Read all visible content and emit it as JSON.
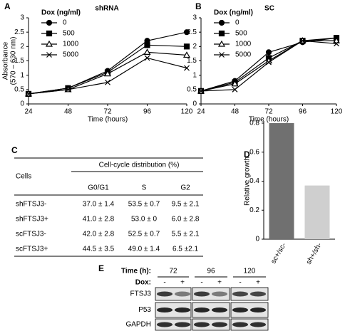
{
  "chart_data": [
    {
      "type": "line",
      "panel": "A",
      "title": "shRNA",
      "xlabel": "Time (hours)",
      "ylabel": [
        "Absorbance",
        "(570 – 630 nm)"
      ],
      "legend_title": "Dox (ng/ml)",
      "legend": "upper left",
      "x": [
        24,
        48,
        72,
        96,
        120
      ],
      "xlim": [
        24,
        120
      ],
      "xticks": [
        24,
        48,
        72,
        96,
        120
      ],
      "ylim": [
        0,
        3
      ],
      "yticks": [
        0,
        0.5,
        1,
        1.5,
        2,
        2.5,
        3
      ],
      "series": [
        {
          "name": "0",
          "color": "#000000",
          "marker": "circle",
          "values": [
            0.35,
            0.55,
            1.15,
            2.2,
            2.5
          ]
        },
        {
          "name": "500",
          "color": "#000000",
          "marker": "square",
          "values": [
            0.35,
            0.55,
            1.1,
            2.05,
            2.0
          ]
        },
        {
          "name": "1000",
          "color": "#000000",
          "marker": "triangle",
          "values": [
            0.35,
            0.5,
            1.05,
            1.8,
            1.7
          ]
        },
        {
          "name": "5000",
          "color": "#000000",
          "marker": "x",
          "values": [
            0.35,
            0.5,
            0.75,
            1.6,
            1.25
          ]
        }
      ]
    },
    {
      "type": "line",
      "panel": "B",
      "title": "SC",
      "xlabel": "Time (hours)",
      "legend_title": "Dox (ng/ml)",
      "legend": "upper left",
      "x": [
        24,
        48,
        72,
        96,
        120
      ],
      "xlim": [
        24,
        120
      ],
      "xticks": [
        24,
        48,
        72,
        96,
        120
      ],
      "ylim": [
        0,
        3
      ],
      "yticks": [
        0,
        0.5,
        1,
        1.5,
        2,
        2.5,
        3
      ],
      "series": [
        {
          "name": "0",
          "color": "#000000",
          "marker": "circle",
          "values": [
            0.45,
            0.8,
            1.8,
            2.15,
            2.3
          ]
        },
        {
          "name": "500",
          "color": "#000000",
          "marker": "square",
          "values": [
            0.45,
            0.75,
            1.6,
            2.2,
            2.3
          ]
        },
        {
          "name": "1000",
          "color": "#000000",
          "marker": "triangle",
          "values": [
            0.45,
            0.7,
            1.5,
            2.2,
            2.2
          ]
        },
        {
          "name": "5000",
          "color": "#000000",
          "marker": "x",
          "values": [
            0.45,
            0.5,
            1.45,
            2.2,
            2.1
          ]
        }
      ]
    },
    {
      "type": "bar",
      "panel": "D",
      "ylabel": "Relative growth",
      "categories": [
        "sc+/sc-",
        "sh+/sh-"
      ],
      "values": [
        0.8,
        0.37
      ],
      "colors": [
        "#707070",
        "#cfcfcf"
      ],
      "ylim": [
        0,
        0.8
      ],
      "yticks": [
        0,
        0.2,
        0.4,
        0.6,
        0.8
      ]
    }
  ],
  "table": {
    "panel": "C",
    "row_header": "Cells",
    "group_header": "Cell-cycle distribution (%)",
    "columns": [
      "G0/G1",
      "S",
      "G2"
    ],
    "rows": [
      [
        "shFTSJ3-",
        "37.0 ± 1.4",
        "53.5 ± 0.7",
        "9.5 ± 2.1"
      ],
      [
        "shFTSJ3+",
        "41.0 ± 2.8",
        "53.0 ± 0",
        "6.0 ± 2.8"
      ],
      [
        "scFTSJ3-",
        "42.0 ± 2.8",
        "52.5 ± 0.7",
        "5.5 ± 2.1"
      ],
      [
        "scFTSJ3+",
        "44.5 ± 3.5",
        "49.0 ± 1.4",
        "6.5 ±2.1"
      ]
    ]
  },
  "blot": {
    "panel": "E",
    "time_label": "Time (h):",
    "times": [
      "72",
      "96",
      "120"
    ],
    "dox_label": "Dox:",
    "dox": [
      "-",
      "+",
      "-",
      "+",
      "-",
      "+"
    ],
    "proteins": [
      "FTSJ3",
      "P53",
      "GAPDH"
    ]
  }
}
